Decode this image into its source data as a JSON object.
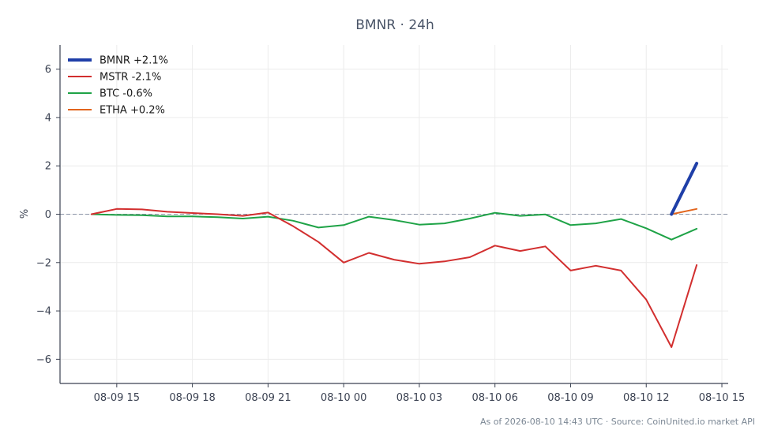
{
  "chart_data": {
    "type": "line",
    "title": "BMNR · 24h",
    "xlabel": "",
    "ylabel": "%",
    "ylim": [
      -7,
      7
    ],
    "yticks": [
      6,
      4,
      2,
      0,
      -2,
      -4,
      -6
    ],
    "ytick_labels": [
      "6",
      "4",
      "2",
      "0",
      "−2",
      "−4",
      "−6"
    ],
    "xlim": [
      "2026-08-09 12:45",
      "2026-08-10 15:15"
    ],
    "xticks": [
      "2026-08-09 15:00",
      "2026-08-09 18:00",
      "2026-08-09 21:00",
      "2026-08-10 00:00",
      "2026-08-10 03:00",
      "2026-08-10 06:00",
      "2026-08-10 09:00",
      "2026-08-10 12:00",
      "2026-08-10 15:00"
    ],
    "xtick_labels": [
      "08-09 15",
      "08-09 18",
      "08-09 21",
      "08-10 00",
      "08-10 03",
      "08-10 06",
      "08-10 09",
      "08-10 12",
      "08-10 15"
    ],
    "grid": true,
    "legend_position": "top-left",
    "zero_line": true,
    "series": [
      {
        "name": "BMNR +2.1%",
        "color": "#1f3fa8",
        "width": 4,
        "x": [
          "2026-08-10 13:00",
          "2026-08-10 14:00"
        ],
        "y": [
          0.0,
          2.1
        ]
      },
      {
        "name": "MSTR -2.1%",
        "color": "#d22f2f",
        "width": 2,
        "x": [
          "2026-08-09 14:00",
          "2026-08-09 15:00",
          "2026-08-09 16:00",
          "2026-08-09 17:00",
          "2026-08-09 18:00",
          "2026-08-09 19:00",
          "2026-08-09 20:00",
          "2026-08-09 21:00",
          "2026-08-09 22:00",
          "2026-08-09 23:00",
          "2026-08-10 00:00",
          "2026-08-10 01:00",
          "2026-08-10 02:00",
          "2026-08-10 03:00",
          "2026-08-10 04:00",
          "2026-08-10 05:00",
          "2026-08-10 06:00",
          "2026-08-10 07:00",
          "2026-08-10 08:00",
          "2026-08-10 09:00",
          "2026-08-10 10:00",
          "2026-08-10 11:00",
          "2026-08-10 12:00",
          "2026-08-10 13:00",
          "2026-08-10 14:00"
        ],
        "y": [
          0.0,
          0.22,
          0.2,
          0.1,
          0.05,
          0.0,
          -0.07,
          0.07,
          -0.5,
          -1.15,
          -2.0,
          -1.6,
          -1.88,
          -2.05,
          -1.95,
          -1.78,
          -1.3,
          -1.52,
          -1.33,
          -2.33,
          -2.13,
          -2.33,
          -3.53,
          -5.5,
          -2.1
        ]
      },
      {
        "name": "BTC -0.6%",
        "color": "#1fa347",
        "width": 2,
        "x": [
          "2026-08-09 14:00",
          "2026-08-09 15:00",
          "2026-08-09 16:00",
          "2026-08-09 17:00",
          "2026-08-09 18:00",
          "2026-08-09 19:00",
          "2026-08-09 20:00",
          "2026-08-09 21:00",
          "2026-08-09 22:00",
          "2026-08-09 23:00",
          "2026-08-10 00:00",
          "2026-08-10 01:00",
          "2026-08-10 02:00",
          "2026-08-10 03:00",
          "2026-08-10 04:00",
          "2026-08-10 05:00",
          "2026-08-10 06:00",
          "2026-08-10 07:00",
          "2026-08-10 08:00",
          "2026-08-10 09:00",
          "2026-08-10 10:00",
          "2026-08-10 11:00",
          "2026-08-10 12:00",
          "2026-08-10 13:00",
          "2026-08-10 14:00"
        ],
        "y": [
          0.0,
          -0.03,
          -0.04,
          -0.09,
          -0.09,
          -0.12,
          -0.18,
          -0.1,
          -0.27,
          -0.55,
          -0.45,
          -0.1,
          -0.24,
          -0.43,
          -0.38,
          -0.18,
          0.06,
          -0.07,
          -0.01,
          -0.45,
          -0.38,
          -0.2,
          -0.58,
          -1.05,
          -0.6
        ]
      },
      {
        "name": "ETHA +0.2%",
        "color": "#e2651d",
        "width": 2,
        "x": [
          "2026-08-10 13:00",
          "2026-08-10 14:00"
        ],
        "y": [
          0.0,
          0.22
        ]
      }
    ],
    "footer": "As of 2026-08-10 14:43 UTC · Source: CoinUnited.io market API"
  }
}
